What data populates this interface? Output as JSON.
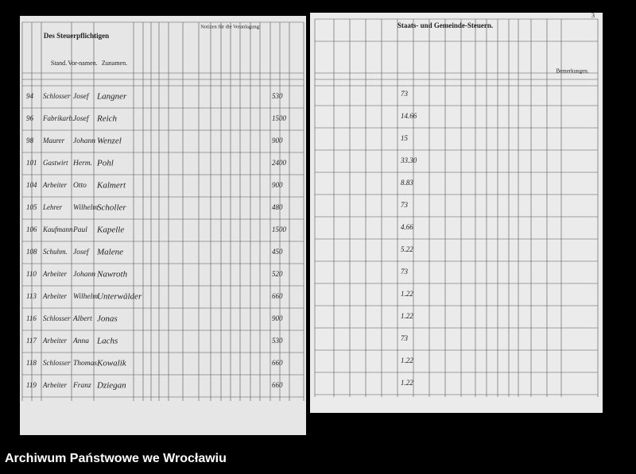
{
  "footer": {
    "caption": "Archiwum Państwowe we Wrocławiu"
  },
  "left_page": {
    "heading": "Des Steuerpflichtigen",
    "columns": [
      "Stand.",
      "Vor-namen.",
      "Zunamen."
    ],
    "notes_heading": "Notizen für die Veranlagung:",
    "rows": [
      {
        "no": "94",
        "stand": "Schlosser",
        "first": "Josef",
        "last": "Langner",
        "amount": "530"
      },
      {
        "no": "96",
        "stand": "Fabrikarb.",
        "first": "Josef",
        "last": "Reich",
        "amount": "1500"
      },
      {
        "no": "98",
        "stand": "Maurer",
        "first": "Johann",
        "last": "Wenzel",
        "amount": "900"
      },
      {
        "no": "101",
        "stand": "Gastwirt",
        "first": "Herm.",
        "last": "Pohl",
        "amount": "2400"
      },
      {
        "no": "104",
        "stand": "Arbeiter",
        "first": "Otto",
        "last": "Kalmert",
        "amount": "900"
      },
      {
        "no": "105",
        "stand": "Lehrer",
        "first": "Wilhelm",
        "last": "Scholler",
        "amount": "480"
      },
      {
        "no": "106",
        "stand": "Kaufmann",
        "first": "Paul",
        "last": "Kapelle",
        "amount": "1500"
      },
      {
        "no": "108",
        "stand": "Schuhm.",
        "first": "Josef",
        "last": "Malene",
        "amount": "450"
      },
      {
        "no": "110",
        "stand": "Arbeiter",
        "first": "Johann",
        "last": "Nawroth",
        "amount": "520"
      },
      {
        "no": "113",
        "stand": "Arbeiter",
        "first": "Wilhelm",
        "last": "Unterwälder",
        "amount": "660"
      },
      {
        "no": "116",
        "stand": "Schlosser",
        "first": "Albert",
        "last": "Jonas",
        "amount": "900"
      },
      {
        "no": "117",
        "stand": "Arbeiter",
        "first": "Anna",
        "last": "Lachs",
        "amount": "530"
      },
      {
        "no": "118",
        "stand": "Schlosser",
        "first": "Thomas",
        "last": "Kowalik",
        "amount": "660"
      },
      {
        "no": "119",
        "stand": "Arbeiter",
        "first": "Franz",
        "last": "Dziegan",
        "amount": "660"
      }
    ]
  },
  "right_page": {
    "page_number": "3",
    "heading": "Staats- und Gemeinde-Steuern.",
    "remarks_heading": "Bemerkungen.",
    "values": [
      "73",
      "14.66",
      "15",
      "33.30",
      "8.83",
      "73",
      "4.66",
      "5.22",
      "73",
      "1.22",
      "1.22",
      "73",
      "1.22",
      "1.22"
    ]
  }
}
